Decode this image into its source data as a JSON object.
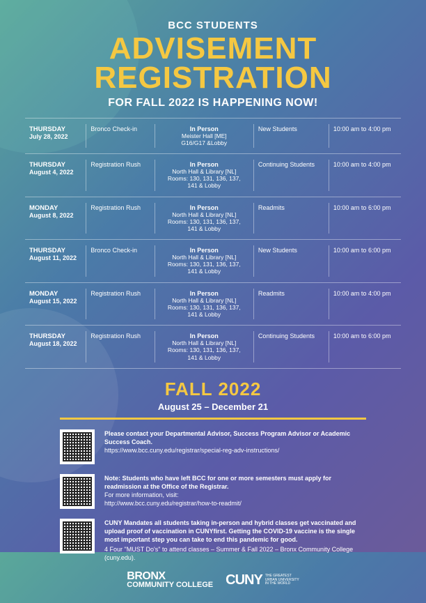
{
  "colors": {
    "accent": "#f5c842",
    "text": "#ffffff",
    "border": "rgba(255,255,255,0.4)"
  },
  "header": {
    "pretitle": "BCC STUDENTS",
    "title_line1": "ADVISEMENT",
    "title_line2": "REGISTRATION",
    "subtitle": "FOR FALL 2022 IS HAPPENING NOW!"
  },
  "schedule": [
    {
      "day": "THURSDAY",
      "date": "July 28, 2022",
      "event": "Bronco Check-in",
      "loc_title": "In Person",
      "loc_detail": "Meister Hall [ME]\nG16/G17 &Lobby",
      "audience": "New Students",
      "time": "10:00 am to 4:00 pm"
    },
    {
      "day": "THURSDAY",
      "date": "August 4, 2022",
      "event": "Registration Rush",
      "loc_title": "In Person",
      "loc_detail": "North Hall & Library [NL]\nRooms: 130, 131, 136, 137,\n141 & Lobby",
      "audience": "Continuing Students",
      "time": "10:00 am to 4:00 pm"
    },
    {
      "day": "MONDAY",
      "date": "August 8, 2022",
      "event": "Registration Rush",
      "loc_title": "In Person",
      "loc_detail": "North Hall & Library [NL]\nRooms: 130, 131, 136, 137,\n141 & Lobby",
      "audience": "Readmits",
      "time": "10:00 am to 6:00 pm"
    },
    {
      "day": "THURSDAY",
      "date": "August 11, 2022",
      "event": "Bronco Check-in",
      "loc_title": "In Person",
      "loc_detail": "North Hall & Library [NL]\nRooms: 130, 131, 136, 137,\n141 & Lobby",
      "audience": "New Students",
      "time": "10:00 am to 6:00 pm"
    },
    {
      "day": "MONDAY",
      "date": "August 15, 2022",
      "event": "Registration Rush",
      "loc_title": "In Person",
      "loc_detail": "North Hall & Library [NL]\nRooms: 130, 131, 136, 137,\n141 & Lobby",
      "audience": "Readmits",
      "time": "10:00 am to 4:00 pm"
    },
    {
      "day": "THURSDAY",
      "date": "August 18, 2022",
      "event": "Registration Rush",
      "loc_title": "In Person",
      "loc_detail": "North Hall & Library [NL]\nRooms: 130, 131, 136, 137,\n141 & Lobby",
      "audience": "Continuing Students",
      "time": "10:00 am to 6:00 pm"
    }
  ],
  "fall": {
    "title": "FALL 2022",
    "dates": "August 25 – December 21"
  },
  "info": [
    {
      "bold": "Please contact your Departmental Advisor, Success Program Advisor or Academic Success Coach.",
      "link": "https://www.bcc.cuny.edu/registrar/special-reg-adv-instructions/",
      "note": ""
    },
    {
      "bold": "Note: Students who have left BCC for one or more semesters must apply for readmission at the Office of the Registrar.",
      "link": "For more information, visit:\nhttp://www.bcc.cuny.edu/registrar/how-to-readmit/",
      "note": ""
    },
    {
      "bold": "CUNY Mandates all students taking in-person and hybrid classes get vaccinated and upload proof of vaccination in CUNYfirst. Getting the COVID-19 vaccine is the single most important step you can take to end this pandemic for good.",
      "link": "",
      "note": "4 Four \"MUST Do's\" to attend classes – Summer & Fall 2022 – Bronx Community College (cuny.edu)."
    }
  ],
  "logos": {
    "bcc_top": "BRONX",
    "bcc_bot": "COMMUNITY COLLEGE",
    "cuny_main": "CUNY",
    "cuny_sub": "THE GREATEST\nURBAN UNIVERSITY\nIN THE WORLD"
  }
}
